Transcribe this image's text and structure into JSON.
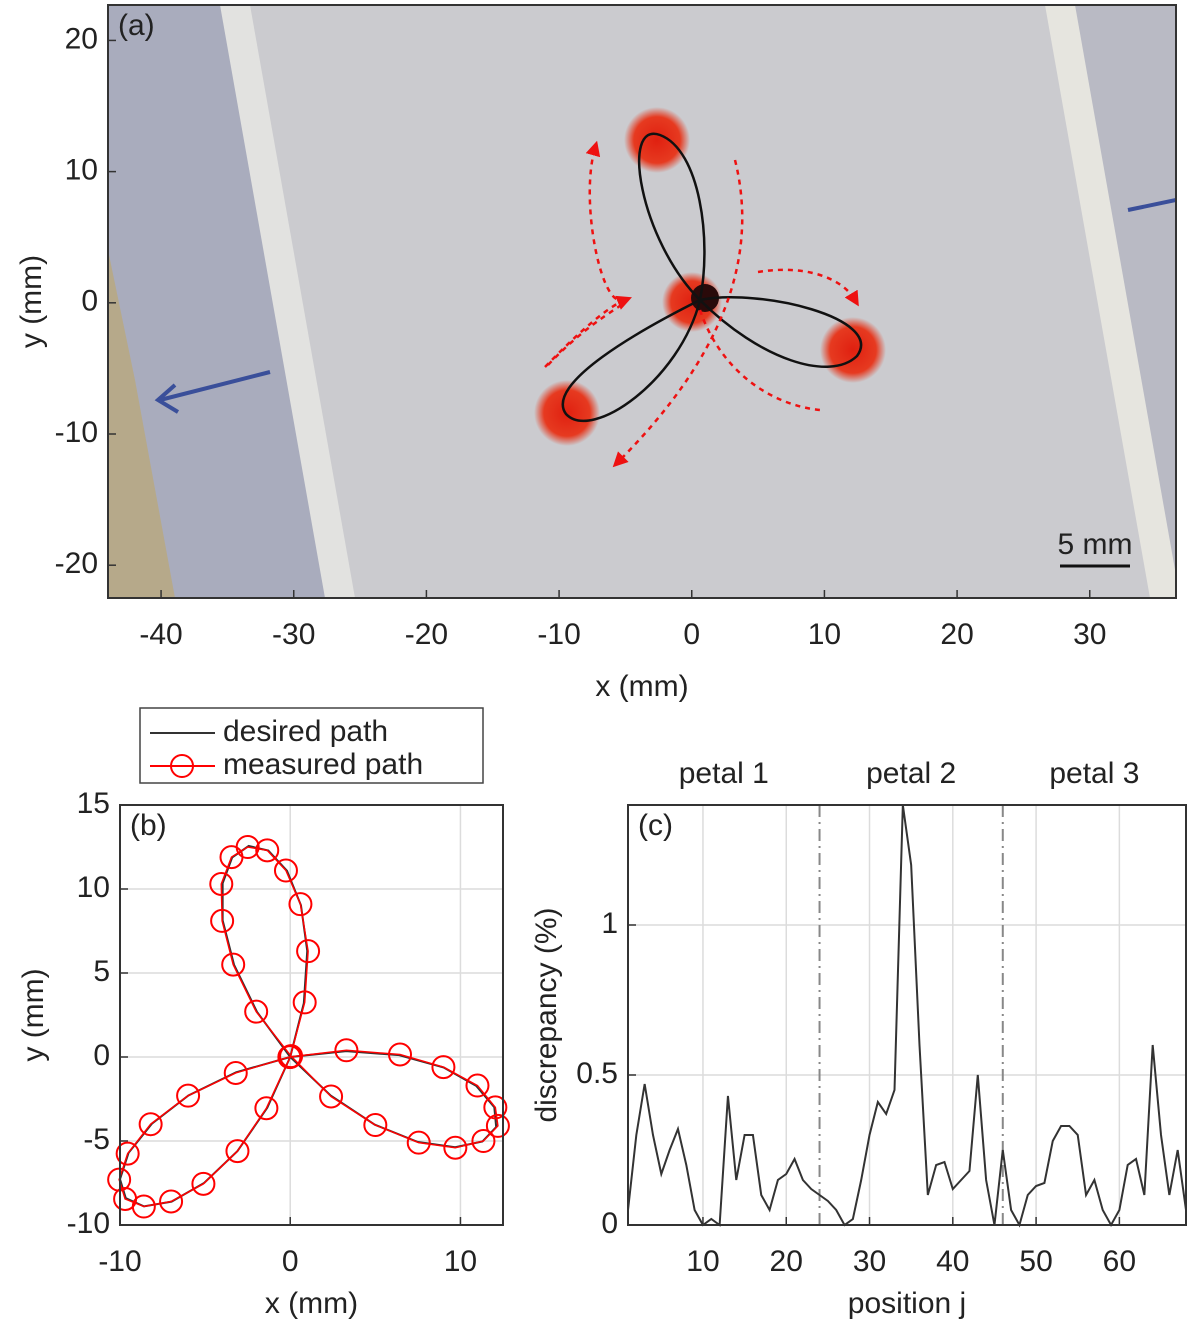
{
  "chart_data": [
    {
      "type": "image",
      "label": "(a)",
      "scale_bar": "5 mm",
      "xlabel": "x (mm)",
      "ylabel": "y (mm)",
      "xlim": [
        -44,
        36.5
      ],
      "ylim": [
        -22.5,
        22.7
      ],
      "xticks": [
        -40,
        -30,
        -20,
        -10,
        0,
        10,
        20,
        30
      ],
      "yticks": [
        -20,
        -10,
        0,
        10,
        20
      ],
      "grid": false
    },
    {
      "type": "path",
      "label": "(b)",
      "xlabel": "x (mm)",
      "ylabel": "y (mm)",
      "xlim": [
        -10,
        12.5
      ],
      "ylim": [
        -10,
        15
      ],
      "xticks": [
        -10,
        0,
        10
      ],
      "yticks": [
        -10,
        -5,
        0,
        5,
        10,
        15
      ],
      "grid": true,
      "series": [
        {
          "name": "desired path",
          "color": "#333333",
          "marker": "none",
          "x": [
            0,
            0.8,
            1.0,
            0.63,
            -0.19,
            -1.29,
            -2.44,
            -3.41,
            -3.97,
            -3.97,
            -3.3,
            -1.95,
            0,
            2.38,
            4.97,
            7.5,
            9.69,
            11.29,
            12.1,
            11.99,
            10.94,
            9.03,
            6.4,
            3.29,
            0,
            -3.18,
            -5.98,
            -8.13,
            -9.5,
            -10.0,
            -9.66,
            -8.59,
            -6.97,
            -5.06,
            -3.1,
            -1.35,
            0
          ],
          "y": [
            0,
            3.21,
            6.32,
            9.03,
            11.08,
            12.29,
            12.56,
            11.88,
            10.34,
            8.13,
            5.49,
            2.68,
            0,
            -2.3,
            -4.03,
            -5.06,
            -5.37,
            -5.03,
            -4.17,
            -2.99,
            -1.73,
            -0.63,
            0.11,
            0.35,
            0,
            -0.91,
            -2.29,
            -3.97,
            -5.71,
            -7.27,
            -8.4,
            -8.89,
            -8.61,
            -7.5,
            -5.6,
            -3.02,
            0
          ]
        },
        {
          "name": "measured path",
          "color": "#ff0000",
          "marker": "circle",
          "x": [
            0,
            0.85,
            1.05,
            0.6,
            -0.25,
            -1.35,
            -2.5,
            -3.45,
            -4.05,
            -4.0,
            -3.35,
            -2.0,
            0.05,
            2.4,
            5.0,
            7.55,
            9.7,
            11.35,
            12.2,
            12.05,
            11.0,
            9.0,
            6.45,
            3.3,
            -0.05,
            -3.2,
            -6.0,
            -8.2,
            -9.55,
            -10.05,
            -9.7,
            -8.6,
            -7.0,
            -5.1,
            -3.1,
            -1.4,
            0
          ],
          "y": [
            0,
            3.25,
            6.3,
            9.1,
            11.1,
            12.3,
            12.5,
            11.9,
            10.3,
            8.1,
            5.5,
            2.7,
            0.05,
            -2.35,
            -4.05,
            -5.1,
            -5.4,
            -5.0,
            -4.1,
            -3.0,
            -1.7,
            -0.6,
            0.15,
            0.4,
            0,
            -0.95,
            -2.3,
            -4.0,
            -5.75,
            -7.3,
            -8.45,
            -8.9,
            -8.6,
            -7.55,
            -5.6,
            -3.05,
            0
          ]
        }
      ]
    },
    {
      "type": "line",
      "label": "(c)",
      "xlabel": "position j",
      "ylabel": "discrepancy (%)",
      "xlim": [
        1,
        68
      ],
      "ylim": [
        0,
        1.4
      ],
      "xticks": [
        10,
        20,
        30,
        40,
        50,
        60
      ],
      "yticks": [
        0,
        0.5,
        1
      ],
      "grid": true,
      "boundaries": [
        24,
        46
      ],
      "segment_labels": [
        "petal 1",
        "petal 2",
        "petal 3"
      ],
      "color": "#333333",
      "x": [
        1,
        2,
        3,
        4,
        5,
        6,
        7,
        8,
        9,
        10,
        11,
        12,
        13,
        14,
        15,
        16,
        17,
        18,
        19,
        20,
        21,
        22,
        23,
        24,
        25,
        26,
        27,
        28,
        29,
        30,
        31,
        32,
        33,
        34,
        35,
        36,
        37,
        38,
        39,
        40,
        41,
        42,
        43,
        44,
        45,
        46,
        47,
        48,
        49,
        50,
        51,
        52,
        53,
        54,
        55,
        56,
        57,
        58,
        59,
        60,
        61,
        62,
        63,
        64,
        65,
        66,
        67,
        68
      ],
      "values": [
        0.05,
        0.3,
        0.47,
        0.3,
        0.17,
        0.25,
        0.32,
        0.2,
        0.05,
        0.0,
        0.02,
        0.0,
        0.43,
        0.15,
        0.3,
        0.3,
        0.1,
        0.05,
        0.15,
        0.17,
        0.22,
        0.15,
        0.12,
        0.1,
        0.08,
        0.05,
        0.0,
        0.02,
        0.15,
        0.3,
        0.41,
        0.37,
        0.45,
        1.4,
        1.2,
        0.6,
        0.1,
        0.2,
        0.21,
        0.12,
        0.15,
        0.18,
        0.5,
        0.15,
        0.0,
        0.25,
        0.05,
        0.0,
        0.1,
        0.13,
        0.14,
        0.28,
        0.33,
        0.33,
        0.3,
        0.1,
        0.15,
        0.05,
        0.0,
        0.05,
        0.2,
        0.22,
        0.1,
        0.6,
        0.3,
        0.1,
        0.25,
        0.05
      ]
    }
  ]
}
